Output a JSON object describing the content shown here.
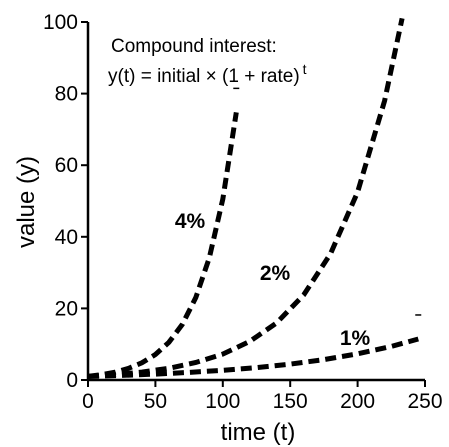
{
  "chart_data": {
    "type": "line",
    "title": "",
    "xlabel": "time (t)",
    "ylabel": "value (y)",
    "xlim": [
      0,
      250
    ],
    "ylim": [
      0,
      100
    ],
    "xticks": [
      0,
      50,
      100,
      150,
      200,
      250
    ],
    "yticks": [
      0,
      20,
      40,
      60,
      80,
      100
    ],
    "grid": false,
    "annotation": {
      "line1": "Compound interest:",
      "line2": "y(t) = initial × (1 + rate)",
      "superscript": "t"
    },
    "series": [
      {
        "label": "4%",
        "x": [
          0,
          10,
          20,
          30,
          40,
          50,
          60,
          70,
          80,
          90,
          100,
          110
        ],
        "y": [
          1.0,
          1.48,
          2.19,
          3.24,
          4.8,
          7.11,
          10.52,
          15.57,
          23.05,
          34.12,
          50.5,
          74.76
        ]
      },
      {
        "label": "2%",
        "x": [
          0,
          20,
          40,
          60,
          80,
          100,
          120,
          140,
          160,
          180,
          200,
          220,
          233
        ],
        "y": [
          1.0,
          1.49,
          2.21,
          3.28,
          4.88,
          7.24,
          10.77,
          15.99,
          23.76,
          35.32,
          52.48,
          78.0,
          101.0
        ]
      },
      {
        "label": "1%",
        "x": [
          0,
          25,
          50,
          75,
          100,
          125,
          150,
          175,
          200,
          225,
          245
        ],
        "y": [
          1.0,
          1.28,
          1.64,
          2.11,
          2.7,
          3.47,
          4.45,
          5.71,
          7.32,
          9.39,
          11.46
        ]
      }
    ]
  }
}
